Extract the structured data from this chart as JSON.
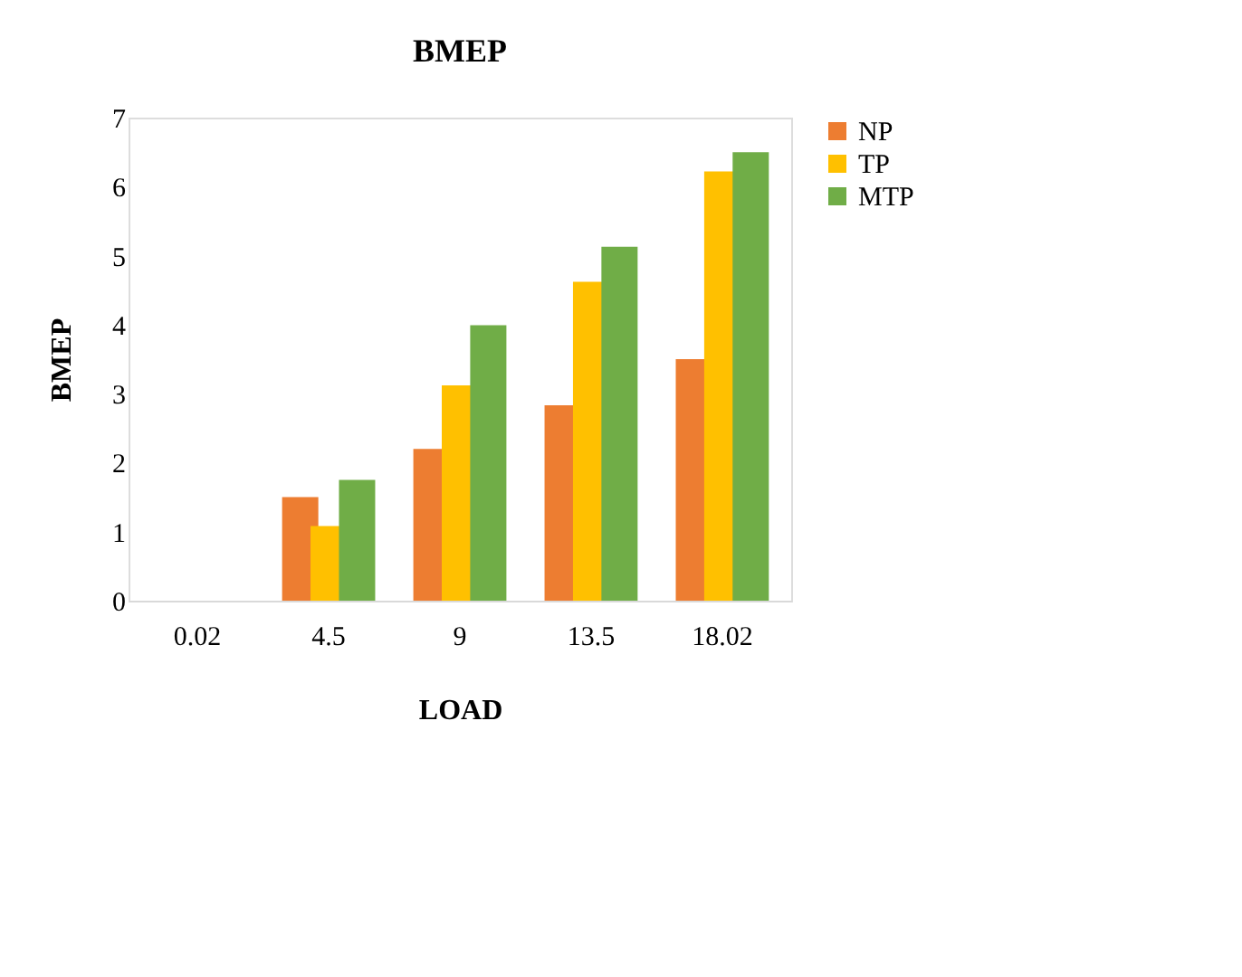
{
  "chart_data": {
    "type": "bar",
    "title": "BMEP",
    "xlabel": "LOAD",
    "ylabel": "BMEP",
    "categories": [
      "0.02",
      "4.5",
      "9",
      "13.5",
      "18.02"
    ],
    "series": [
      {
        "name": "NP",
        "color": "#ed7d31",
        "values": [
          0,
          1.5,
          2.2,
          2.83,
          3.5
        ]
      },
      {
        "name": "TP",
        "color": "#ffc000",
        "values": [
          0,
          1.08,
          3.12,
          4.62,
          6.22
        ]
      },
      {
        "name": "MTP",
        "color": "#70ad47",
        "values": [
          0,
          1.75,
          3.99,
          5.13,
          6.5
        ]
      }
    ],
    "ylim": [
      0,
      7
    ],
    "yticks": [
      0,
      1,
      2,
      3,
      4,
      5,
      6,
      7
    ],
    "grid": false,
    "legend": "right"
  }
}
